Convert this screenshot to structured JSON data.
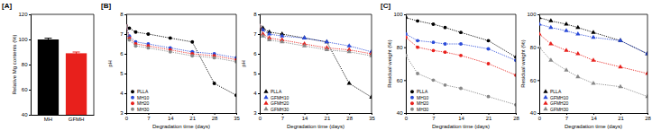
{
  "panel_labels": [
    "[A]",
    "[B]",
    "[C]"
  ],
  "chart_data": [
    {
      "type": "bar",
      "ylabel": "Relative Mg contents (%)",
      "categories": [
        "MH",
        "GFMH"
      ],
      "values": [
        100,
        89
      ],
      "errors": [
        1,
        1
      ],
      "colors": [
        "#000000",
        "#e8201c"
      ],
      "ylim": [
        40,
        120
      ],
      "yticks": [
        40,
        60,
        80,
        100,
        120
      ]
    },
    {
      "type": "line",
      "xlabel": "Degradation time (days)",
      "ylabel": "pH",
      "x": [
        0,
        1,
        3,
        7,
        14,
        21,
        28,
        35
      ],
      "xlim": [
        0,
        35
      ],
      "xticks": [
        0,
        7,
        14,
        21,
        28,
        35
      ],
      "ylim": [
        3,
        8
      ],
      "yticks": [
        3,
        4,
        5,
        6,
        7,
        8
      ],
      "legend": "lower left",
      "line_style": "dotted",
      "series": [
        {
          "name": "PLLA",
          "color": "#000000",
          "marker": "circle",
          "values": [
            7.4,
            7.3,
            7.1,
            7.0,
            6.8,
            6.6,
            4.5,
            3.9
          ]
        },
        {
          "name": "MH10",
          "color": "#2b4bd8",
          "marker": "circle",
          "values": [
            7.4,
            6.9,
            6.6,
            6.5,
            6.3,
            6.1,
            6.0,
            5.8
          ]
        },
        {
          "name": "MH20",
          "color": "#e8201c",
          "marker": "circle",
          "values": [
            7.4,
            6.8,
            6.5,
            6.4,
            6.2,
            6.0,
            5.9,
            5.7
          ]
        },
        {
          "name": "MH30",
          "color": "#888888",
          "marker": "circle",
          "values": [
            7.4,
            6.7,
            6.4,
            6.3,
            6.1,
            5.9,
            5.8,
            5.6
          ]
        }
      ]
    },
    {
      "type": "line",
      "xlabel": "Degradation time (days)",
      "ylabel": "pH",
      "x": [
        0,
        1,
        3,
        7,
        14,
        21,
        28,
        35
      ],
      "xlim": [
        0,
        35
      ],
      "xticks": [
        0,
        7,
        14,
        21,
        28,
        35
      ],
      "ylim": [
        3,
        8
      ],
      "yticks": [
        3,
        4,
        5,
        6,
        7,
        8
      ],
      "legend": "lower left",
      "line_style": "dotted",
      "series": [
        {
          "name": "PLLA",
          "color": "#000000",
          "marker": "triangle",
          "values": [
            7.4,
            7.3,
            7.1,
            7.0,
            6.8,
            6.6,
            4.5,
            3.8
          ]
        },
        {
          "name": "GFMH10",
          "color": "#2b4bd8",
          "marker": "triangle",
          "values": [
            7.4,
            7.2,
            7.0,
            6.9,
            6.8,
            6.6,
            6.4,
            6.1
          ]
        },
        {
          "name": "GFMH20",
          "color": "#e8201c",
          "marker": "triangle",
          "values": [
            7.4,
            7.0,
            6.8,
            6.7,
            6.5,
            6.3,
            6.2,
            6.0
          ]
        },
        {
          "name": "GFMH30",
          "color": "#888888",
          "marker": "triangle",
          "values": [
            7.4,
            6.9,
            6.7,
            6.6,
            6.4,
            6.2,
            6.1,
            5.9
          ]
        }
      ]
    },
    {
      "type": "line",
      "xlabel": "Degradation time (days)",
      "ylabel": "Residual weight (%)",
      "x": [
        0,
        3,
        7,
        10,
        14,
        21,
        28
      ],
      "xlim": [
        0,
        28
      ],
      "xticks": [
        0,
        7,
        14,
        21,
        28
      ],
      "ylim": [
        40,
        100
      ],
      "yticks": [
        40,
        60,
        80,
        100
      ],
      "legend": "lower left",
      "line_style": "dotted",
      "series": [
        {
          "name": "PLLA",
          "color": "#000000",
          "marker": "circle",
          "values": [
            98,
            96,
            94,
            92,
            89,
            84,
            74
          ]
        },
        {
          "name": "MH10",
          "color": "#2b4bd8",
          "marker": "circle",
          "values": [
            88,
            84,
            83,
            82,
            82,
            79,
            72
          ]
        },
        {
          "name": "MH20",
          "color": "#e8201c",
          "marker": "circle",
          "values": [
            86,
            80,
            78,
            77,
            75,
            70,
            63
          ]
        },
        {
          "name": "MH30",
          "color": "#888888",
          "marker": "circle",
          "values": [
            75,
            64,
            60,
            57,
            55,
            50,
            45
          ]
        }
      ]
    },
    {
      "type": "line",
      "xlabel": "Degradation time (days)",
      "ylabel": "Residual weight (%)",
      "x": [
        0,
        3,
        7,
        10,
        14,
        21,
        28
      ],
      "xlim": [
        0,
        28
      ],
      "xticks": [
        0,
        7,
        14,
        21,
        28
      ],
      "ylim": [
        40,
        100
      ],
      "yticks": [
        40,
        60,
        80,
        100
      ],
      "legend": "lower left",
      "line_style": "dotted",
      "series": [
        {
          "name": "PLLA",
          "color": "#000000",
          "marker": "triangle",
          "values": [
            98,
            96,
            94,
            92,
            89,
            84,
            76
          ]
        },
        {
          "name": "GFMH10",
          "color": "#2b4bd8",
          "marker": "triangle",
          "values": [
            94,
            92,
            90,
            88,
            86,
            84,
            76
          ]
        },
        {
          "name": "GFMH20",
          "color": "#e8201c",
          "marker": "triangle",
          "values": [
            88,
            82,
            78,
            76,
            72,
            68,
            64
          ]
        },
        {
          "name": "GFMH30",
          "color": "#888888",
          "marker": "triangle",
          "values": [
            80,
            72,
            66,
            62,
            58,
            56,
            50
          ]
        }
      ]
    }
  ]
}
